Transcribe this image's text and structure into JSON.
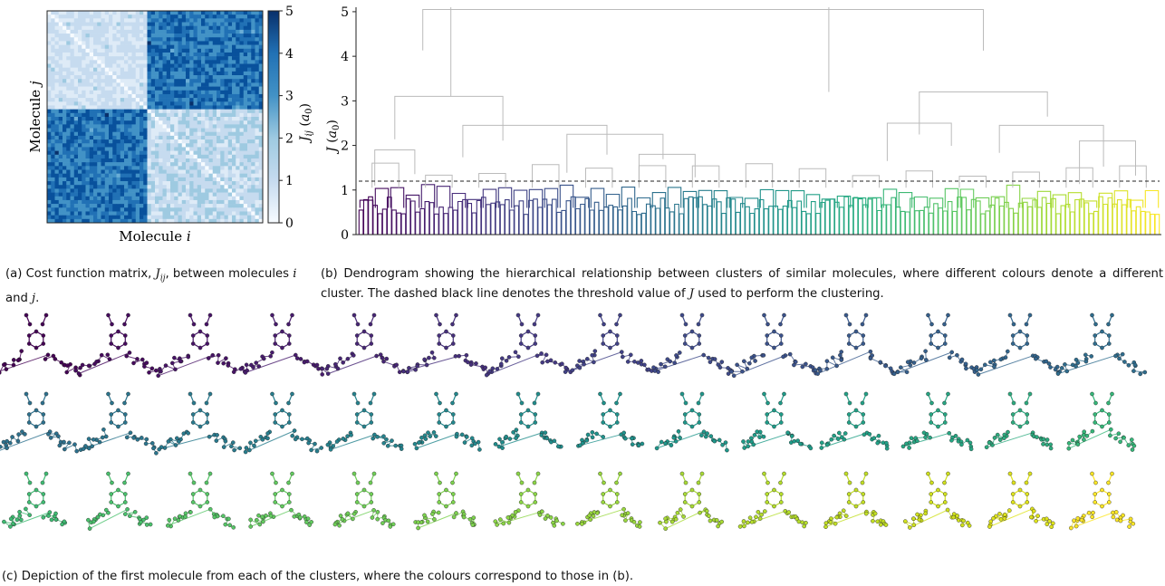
{
  "chart_data": [
    {
      "id": "a",
      "type": "heatmap",
      "title": "",
      "xlabel": "Molecule i",
      "ylabel": "Molecule j",
      "colorbar_label": "J_ij (a_0)",
      "colorbar_ticks": [
        0,
        1,
        2,
        3,
        4,
        5
      ],
      "zlim": [
        0,
        5
      ],
      "colormap": [
        "#f7fbff",
        "#deebf7",
        "#c6dbef",
        "#9ecae1",
        "#6baed6",
        "#4292c6",
        "#2171b5",
        "#08519c",
        "#08306b"
      ],
      "blocks": [
        {
          "rows": "top-left",
          "level": 1.0
        },
        {
          "rows": "top-right",
          "level": 3.6
        },
        {
          "rows": "bottom-left",
          "level": 3.8
        },
        {
          "rows": "bottom-right",
          "level": 1.1
        },
        {
          "rows": "diagonal",
          "level": 0.0
        }
      ]
    },
    {
      "id": "b",
      "type": "dendrogram",
      "title": "",
      "xlabel": "",
      "ylabel": "J (a_0)",
      "yticks": [
        0,
        1,
        2,
        3,
        4,
        5
      ],
      "ylim": [
        0,
        5
      ],
      "threshold": 1.2,
      "upper_color": "#bbbbbb",
      "threshold_color": "#222222",
      "colormap": [
        "#440154",
        "#472c7a",
        "#3b518b",
        "#2c718e",
        "#21908d",
        "#27ad81",
        "#5cc863",
        "#aadc32",
        "#fde725"
      ],
      "links": [
        {
          "x": [
            0.5,
            0.08
          ],
          "x2": 0.78,
          "y": 5.05
        },
        {
          "x": [
            0.08,
            0.045
          ],
          "x2": 0.18,
          "y": 3.1
        },
        {
          "x": [
            0.045,
            0.02
          ],
          "x2": 0.07,
          "y": 1.9
        },
        {
          "x": [
            0.18,
            0.13
          ],
          "x2": 0.31,
          "y": 2.45
        },
        {
          "x": [
            0.31,
            0.26
          ],
          "x2": 0.38,
          "y": 2.25
        },
        {
          "x": [
            0.38,
            0.35
          ],
          "x2": 0.42,
          "y": 1.8
        },
        {
          "x": [
            0.78,
            0.7
          ],
          "x2": 0.86,
          "y": 3.2
        },
        {
          "x": [
            0.7,
            0.66
          ],
          "x2": 0.74,
          "y": 2.5
        },
        {
          "x": [
            0.86,
            0.8
          ],
          "x2": 0.93,
          "y": 2.45
        },
        {
          "x": [
            0.93,
            0.9
          ],
          "x2": 0.97,
          "y": 2.1
        }
      ]
    }
  ],
  "molecule_grid": {
    "rows": 3,
    "cols": 14,
    "colors": [
      [
        "#440154",
        "#460b5e",
        "#471366",
        "#481c6e",
        "#472675",
        "#46307c",
        "#443983",
        "#414287",
        "#3e4a89",
        "#3b528b",
        "#38598c",
        "#35608d",
        "#32668e",
        "#2f6d8e"
      ],
      [
        "#2d718e",
        "#2b758e",
        "#297a8e",
        "#277e8e",
        "#25838e",
        "#23888e",
        "#218d8c",
        "#1f928c",
        "#1f978b",
        "#1f9c89",
        "#22a187",
        "#27a683",
        "#2dab7f",
        "#35b779"
      ],
      [
        "#3fbc73",
        "#4ac16d",
        "#56c667",
        "#62cb5f",
        "#6fcf57",
        "#7dd34e",
        "#8bd646",
        "#99d83d",
        "#a8db34",
        "#b5de2b",
        "#c2df23",
        "#d0e11c",
        "#dee31a",
        "#fde725"
      ]
    ]
  },
  "captions": {
    "a": "(a) Cost function matrix, J_ij, between molecules i and j.",
    "b": "(b) Dendrogram showing the hierarchical relationship between clusters of similar molecules, where different colours denote a different cluster. The dashed black line denotes the threshold value of J used to perform the clustering.",
    "c": "(c) Depiction of the first molecule from each of the clusters, where the colours correspond to those in (b)."
  },
  "labels": {
    "a_xlabel": "Molecule i",
    "a_ylabel": "Molecule j",
    "a_cbar": "J_ij (a_0)",
    "b_ylabel": "J (a_0)"
  }
}
